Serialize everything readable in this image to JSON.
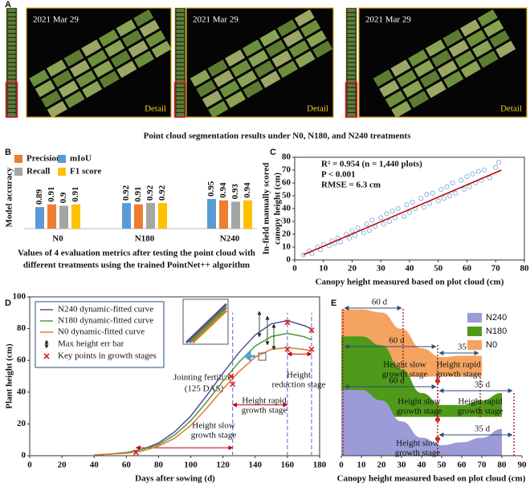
{
  "panel_a": {
    "label": "A",
    "date_labels": [
      "2021 Mar 29",
      "2021 Mar 29",
      "2021 Mar 29"
    ],
    "detail_labels": [
      "Detail",
      "Detail",
      "Detail"
    ],
    "caption": "Point cloud segmentation results under N0, N180, and N240 treatments"
  },
  "chart_data": [
    {
      "type": "bar",
      "label": "B",
      "ylabel": "Model accuracy",
      "caption": [
        "Values of 4 evaluation metrics after testing the point cloud with",
        "different treatments using the trained PointNet++ algorithm"
      ],
      "categories": [
        "N0",
        "N180",
        "N240"
      ],
      "ylim": [
        0.73,
        1.2
      ],
      "series": [
        {
          "name": "mIoU",
          "color": "#5b9bd5",
          "values": [
            0.89,
            0.92,
            0.95
          ]
        },
        {
          "name": "Precision",
          "color": "#ed7d31",
          "values": [
            0.91,
            0.91,
            0.94
          ]
        },
        {
          "name": "Recall",
          "color": "#a5a5a5",
          "values": [
            0.9,
            0.92,
            0.93
          ]
        },
        {
          "name": "F1 score",
          "color": "#ffc000",
          "values": [
            0.91,
            0.92,
            0.94
          ]
        }
      ]
    },
    {
      "type": "scatter",
      "label": "C",
      "xlabel": "Canopy height measured based on plot cloud (cm)",
      "ylabel": [
        "In-field manually scored",
        "canopy height (cm)"
      ],
      "annotations": [
        "R² = 0.954 (n = 1,440 plots)",
        "P < 0.001",
        "RMSE = 6.3 cm"
      ],
      "xlim": [
        0,
        80
      ],
      "ylim": [
        0,
        80
      ],
      "xticks": [
        0,
        10,
        20,
        30,
        40,
        50,
        60,
        70,
        80
      ],
      "yticks": [
        0,
        10,
        20,
        30,
        40,
        50,
        60,
        70,
        80
      ],
      "color": "#6fa8dc",
      "fit_color": "#c00000",
      "fit_x": [
        3,
        72
      ],
      "fit_y": [
        4,
        70
      ],
      "x": [
        3,
        5,
        6,
        8,
        9,
        10,
        12,
        13,
        14,
        15,
        16,
        18,
        19,
        20,
        21,
        22,
        24,
        25,
        26,
        27,
        28,
        30,
        31,
        32,
        33,
        34,
        35,
        36,
        38,
        39,
        40,
        41,
        42,
        44,
        45,
        46,
        47,
        48,
        50,
        51,
        52,
        53,
        54,
        55,
        56,
        58,
        59,
        60,
        61,
        62,
        63,
        64,
        65,
        66,
        68,
        70,
        71
      ],
      "y": [
        4,
        7,
        5,
        10,
        8,
        12,
        11,
        15,
        13,
        17,
        14,
        20,
        17,
        23,
        19,
        25,
        21,
        28,
        23,
        31,
        26,
        33,
        28,
        36,
        30,
        38,
        33,
        40,
        34,
        43,
        37,
        45,
        40,
        48,
        41,
        51,
        44,
        52,
        46,
        55,
        48,
        57,
        50,
        60,
        52,
        62,
        55,
        65,
        57,
        67,
        60,
        69,
        62,
        70,
        64,
        72,
        76
      ]
    },
    {
      "type": "line",
      "label": "D",
      "xlabel": "Days after sowing (d)",
      "ylabel": "Plant height (cm)",
      "xlim": [
        0,
        180
      ],
      "ylim": [
        0,
        100
      ],
      "xticks": [
        0,
        20,
        40,
        60,
        80,
        100,
        120,
        140,
        160,
        180
      ],
      "yticks": [
        0,
        20,
        40,
        60,
        80,
        100
      ],
      "x": [
        40,
        50,
        60,
        70,
        80,
        90,
        100,
        110,
        120,
        130,
        140,
        150,
        160,
        170,
        175
      ],
      "series": [
        {
          "name": "N240 dynamic-fitted curve",
          "color": "#5b4b9b",
          "values": [
            0.5,
            1,
            2,
            4,
            8,
            15,
            25,
            38,
            52,
            65,
            76,
            83,
            85,
            82,
            80
          ]
        },
        {
          "name": "N180 dynamic-fitted curve",
          "color": "#4a9a3a",
          "values": [
            0.5,
            1,
            2,
            4,
            7,
            13,
            22,
            34,
            47,
            59,
            69,
            75,
            77,
            75,
            73
          ]
        },
        {
          "name": "N0 dynamic-fitted curve",
          "color": "#e07a2a",
          "values": [
            0.5,
            1,
            1.5,
            3,
            6,
            11,
            19,
            30,
            42,
            53,
            62,
            67,
            68,
            67,
            66
          ]
        }
      ],
      "err_bar_name": "Max height err bar",
      "key_point_name": "Key points in growth stages",
      "key_color": "#e02020",
      "key_x": [
        66,
        125,
        126,
        160,
        160,
        175,
        175
      ],
      "key_y": [
        2,
        50,
        45,
        84,
        67,
        79,
        67
      ],
      "stage_lines": [
        66,
        126,
        160,
        175
      ],
      "stage_labels": [
        [
          "Height slow",
          "growth stage"
        ],
        [
          "Height rapid",
          "growth stage"
        ],
        [
          "Height",
          "reduction stage"
        ]
      ],
      "fertilizer_label": [
        "Jointing fertilizer",
        "(125 DAS)"
      ]
    },
    {
      "type": "ridge",
      "label": "E",
      "xlabel": "Canopy height measured based on plot cloud (cm)",
      "xlim": [
        0,
        90
      ],
      "ylim": [
        0,
        100
      ],
      "xticks": [
        0,
        10,
        20,
        30,
        40,
        50,
        60,
        70,
        80,
        90
      ],
      "x": [
        0,
        10,
        20,
        30,
        40,
        50,
        60,
        70,
        80
      ],
      "series": [
        {
          "name": "N240",
          "color": "#9b9bd8",
          "baseline": 0,
          "values": [
            44,
            44,
            37,
            23,
            12,
            7,
            9,
            12,
            18
          ]
        },
        {
          "name": "N180",
          "color": "#4f9a1a",
          "baseline": 26,
          "values": [
            80,
            80,
            74,
            58,
            42,
            34,
            34,
            37,
            42
          ]
        },
        {
          "name": "N0",
          "color": "#f4a460",
          "baseline": 53,
          "values": [
            98,
            98,
            96,
            85,
            72,
            66,
            67,
            67,
            null
          ]
        }
      ],
      "durations": [
        "60 d",
        "35 d"
      ],
      "stage_labels": [
        [
          "Height slow",
          "growth stage"
        ],
        [
          "Height rapid",
          "growth stage"
        ]
      ]
    }
  ]
}
